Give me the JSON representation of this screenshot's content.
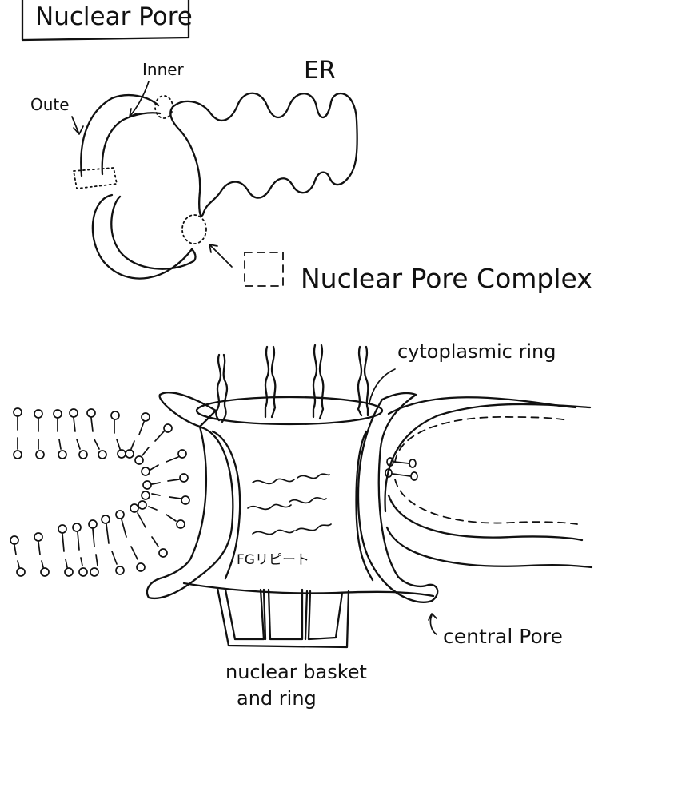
{
  "title": "Nuclear Pore",
  "top_diagram": {
    "labels": {
      "outer": "Oute",
      "inner": "Inner",
      "er": "ER",
      "legend": "Nuclear Pore Complex"
    }
  },
  "bottom_diagram": {
    "labels": {
      "cytoplasmic_ring": "cytoplasmic ring",
      "fg_repeat": "FGリピート",
      "central_pore": "central Pore",
      "nuclear_basket_line1": "nuclear basket",
      "nuclear_basket_line2": "and ring"
    }
  },
  "colors": {
    "ink": "#111111",
    "paper": "#ffffff"
  }
}
